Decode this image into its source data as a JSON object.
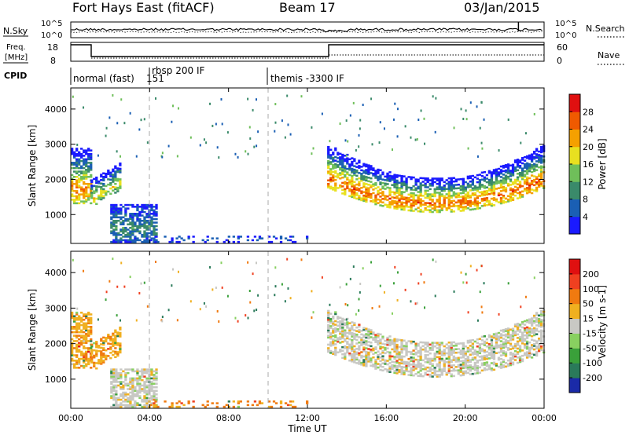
{
  "header": {
    "station": "Fort Hays East (fitACF)",
    "beam": "Beam 17",
    "date": "03/Jan/2015"
  },
  "sky_panel": {
    "label": "N.Sky",
    "ticks_left": [
      "10^5",
      "10^0"
    ],
    "ticks_right": [
      "10^5",
      "10^0"
    ],
    "right_label": "N.Search"
  },
  "freq_panel": {
    "label_line1": "Freq.",
    "label_line2": "[MHz]",
    "ticks_left": [
      "18",
      "8"
    ],
    "ticks_right": [
      "60",
      "0"
    ],
    "right_label": "Nave"
  },
  "cpid_panel": {
    "label": "CPID",
    "modes": [
      {
        "text": "normal (fast)",
        "t": 0.0
      },
      {
        "text": "151",
        "t": 3.85
      },
      {
        "text": "rbsp 200 IF",
        "t": 4.0
      },
      {
        "text": "themis -3300 IF",
        "t": 10.0
      }
    ]
  },
  "axes": {
    "xlabel": "Time UT",
    "ylabel_power": "Slant Range [km]",
    "ylabel_velocity": "Slant Range [km]",
    "x_ticks": [
      "00:00",
      "04:00",
      "08:00",
      "12:00",
      "16:00",
      "20:00",
      "00:00"
    ],
    "y_ticks": [
      "1000",
      "2000",
      "3000",
      "4000"
    ]
  },
  "colorbars": {
    "power": {
      "label": "Power [dB]",
      "ticks": [
        "4",
        "8",
        "12",
        "16",
        "20",
        "24",
        "28"
      ],
      "colors": [
        "#1a1aff",
        "#1a5fb4",
        "#3a8a6a",
        "#6fbf5a",
        "#e8e020",
        "#f5a000",
        "#f05a00",
        "#e01010"
      ]
    },
    "velocity": {
      "label": "Velocity [m s-1]",
      "ticks": [
        "200",
        "100",
        "50",
        "15",
        "-15",
        "-50",
        "-100",
        "-200"
      ],
      "colors": [
        "#1a2aa8",
        "#2a7a5a",
        "#3aa03a",
        "#88d060",
        "#c8c8c4",
        "#f0b020",
        "#f07a10",
        "#f04020",
        "#e01010"
      ]
    }
  },
  "chart_data": [
    {
      "type": "heatmap",
      "title": "Power",
      "xlabel": "Time UT",
      "ylabel": "Slant Range [km]",
      "xlim": [
        0,
        24
      ],
      "ylim": [
        180,
        4600
      ],
      "colorbar_label": "Power [dB]",
      "colorbar_range": [
        0,
        30
      ],
      "regions": [
        {
          "t": [
            0.0,
            1.0
          ],
          "range": [
            1300,
            2900
          ],
          "peak_range": 1700,
          "peak_db": 24
        },
        {
          "t": [
            1.0,
            2.5
          ],
          "range": [
            1200,
            2500
          ],
          "peak_range": 1550,
          "peak_db": 18
        },
        {
          "t": [
            2.0,
            4.3
          ],
          "range": [
            200,
            1300
          ],
          "peak_range": 600,
          "peak_db": 10
        },
        {
          "t": [
            4.0,
            12.0
          ],
          "range": [
            200,
            400
          ],
          "peak_range": 300,
          "peak_db": 6
        },
        {
          "t": [
            13.0,
            24.0
          ],
          "range": [
            1100,
            3000
          ],
          "peak_range": 1500,
          "peak_db": 26
        }
      ]
    },
    {
      "type": "heatmap",
      "title": "Velocity",
      "xlabel": "Time UT",
      "ylabel": "Slant Range [km]",
      "xlim": [
        0,
        24
      ],
      "ylim": [
        180,
        4600
      ],
      "colorbar_label": "Velocity [m s-1]",
      "colorbar_range": [
        -200,
        200
      ],
      "regions": [
        {
          "t": [
            0.0,
            2.8
          ],
          "range": [
            1300,
            2900
          ],
          "mean_velocity": -40
        },
        {
          "t": [
            2.0,
            4.3
          ],
          "range": [
            200,
            1300
          ],
          "mean_velocity": 0
        },
        {
          "t": [
            4.0,
            12.0
          ],
          "range": [
            200,
            400
          ],
          "mean_velocity": -60
        },
        {
          "t": [
            13.0,
            24.0
          ],
          "range": [
            1100,
            3000
          ],
          "mean_velocity": 0
        }
      ]
    }
  ]
}
